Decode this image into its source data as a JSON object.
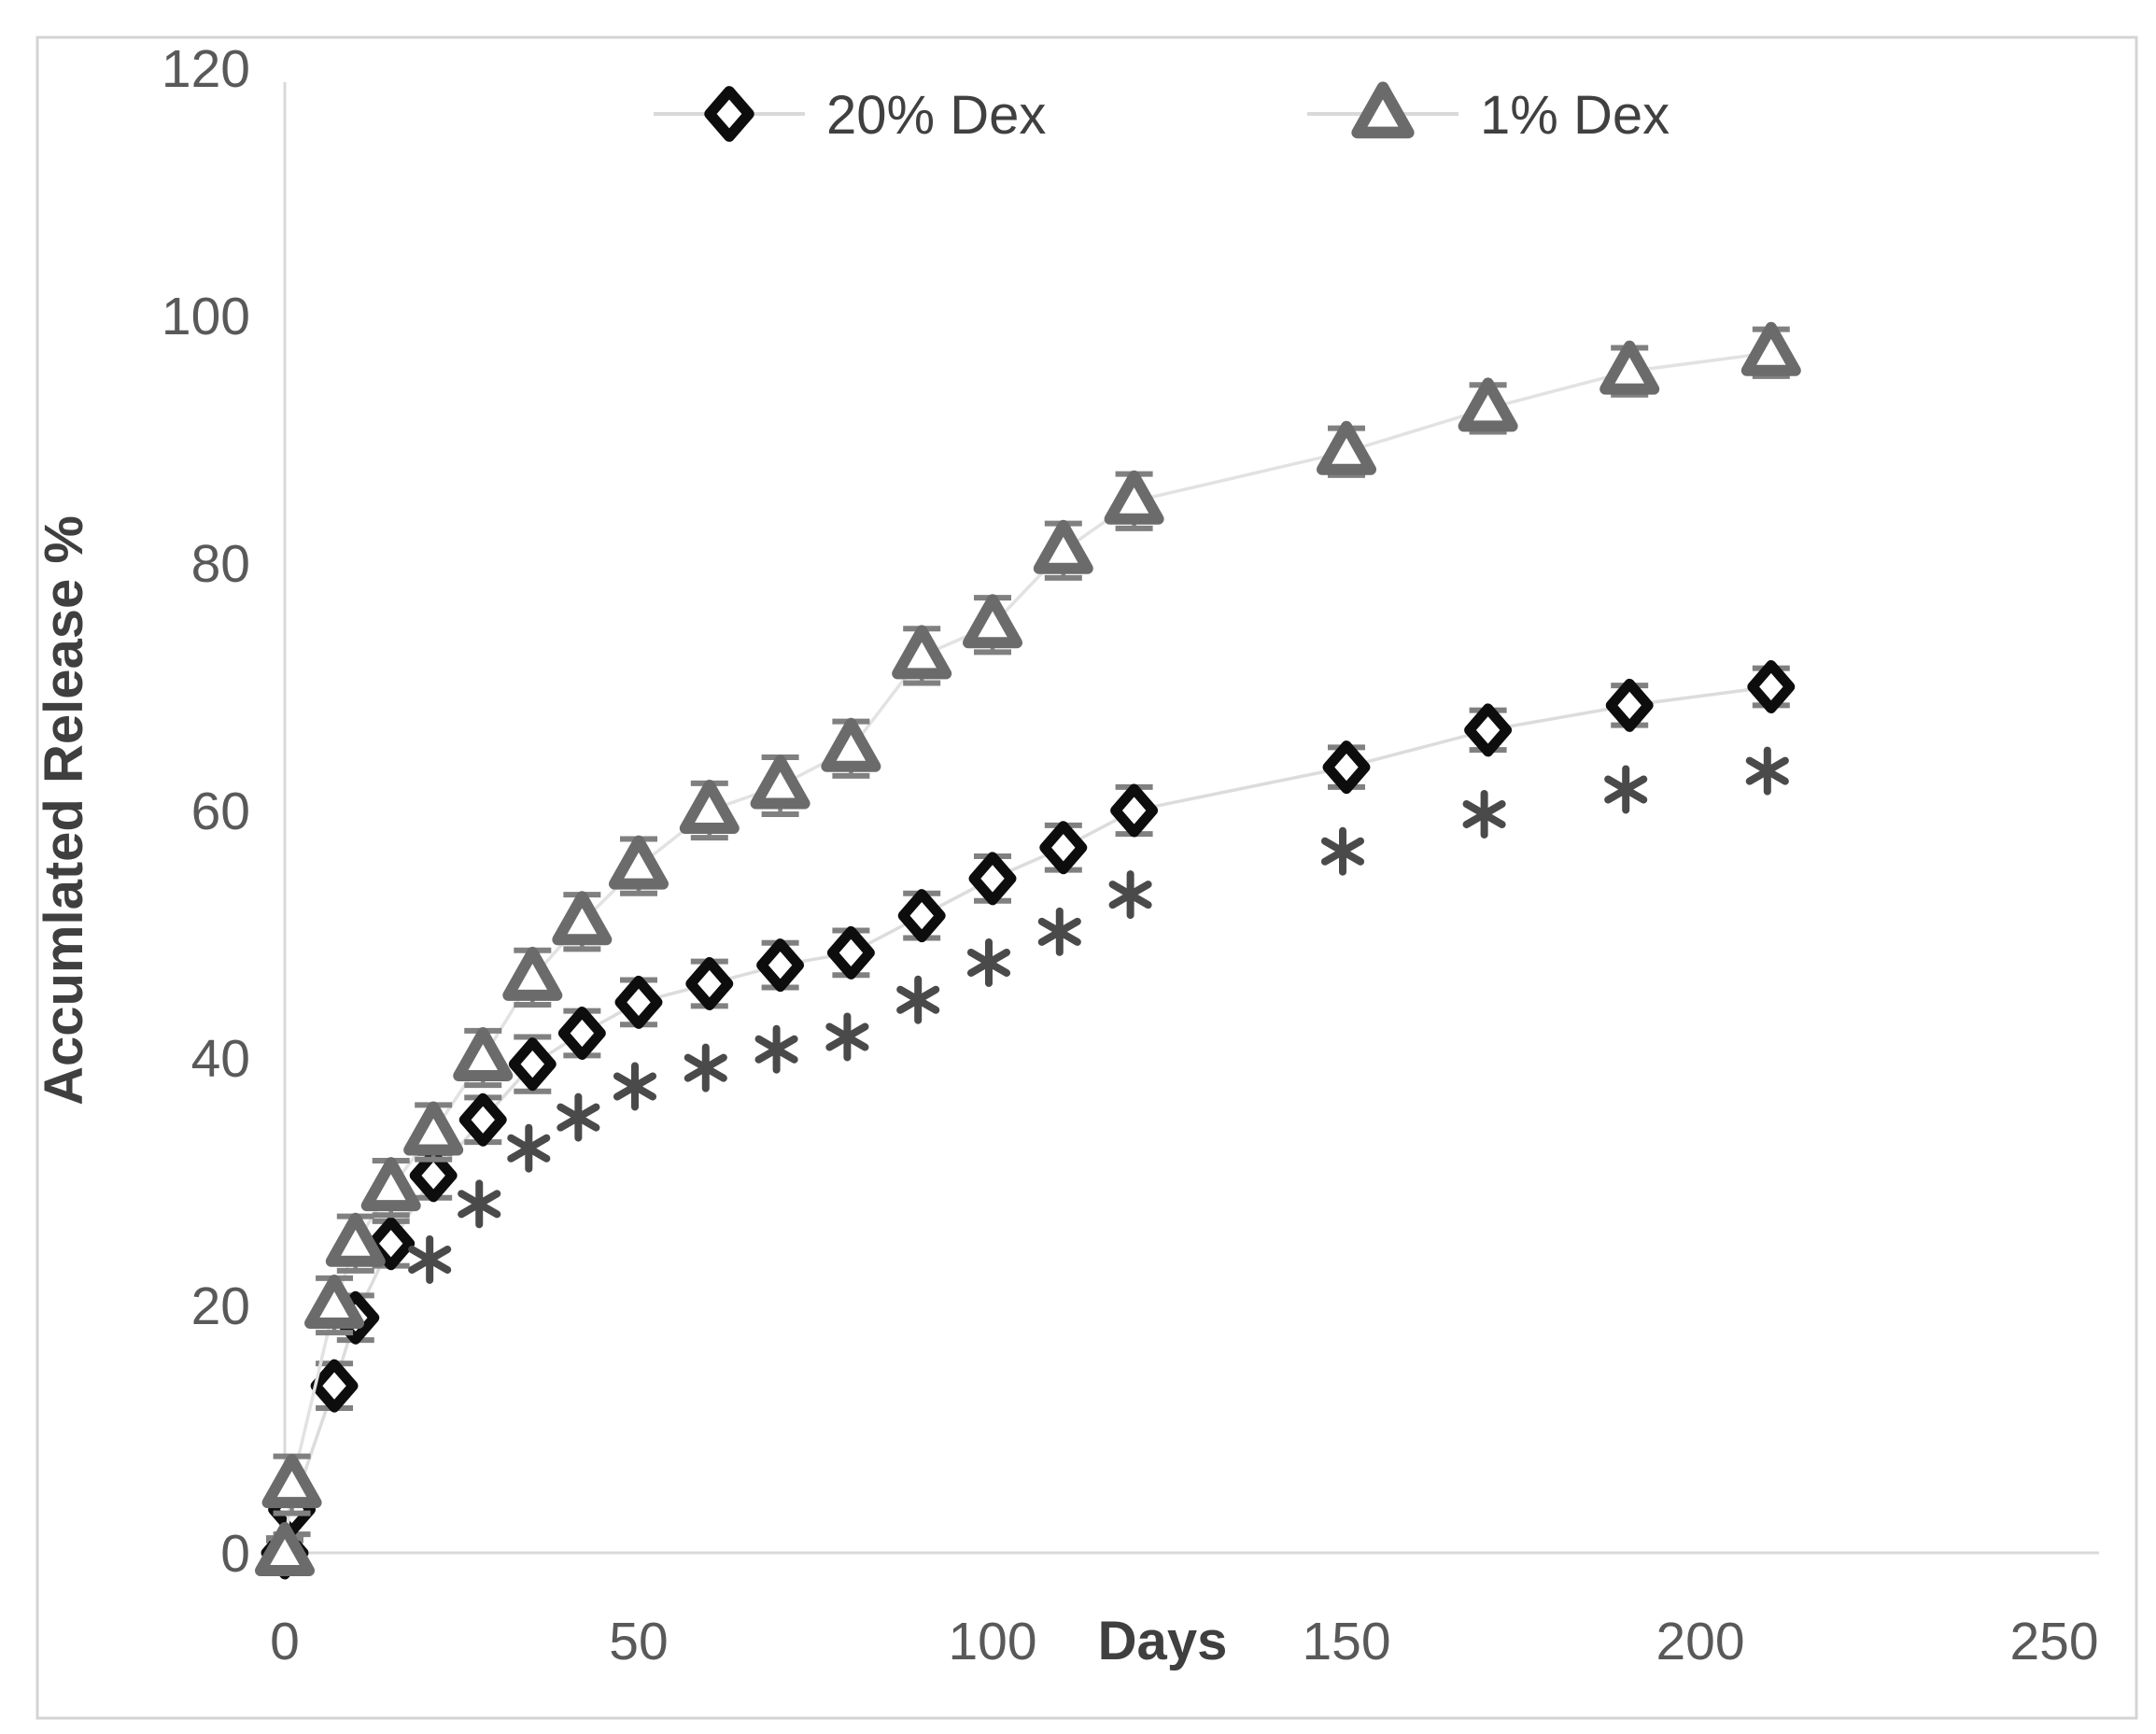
{
  "figure": {
    "border_color": "#d4d4d4",
    "background": "#ffffff"
  },
  "colors": {
    "axis_line": "#d9d9d9",
    "tick_text": "#595959",
    "axis_title_text": "#3f3f3f",
    "series_line": "#dcdcdc",
    "error_bar": "#808080",
    "diamond_marker": "#0d0d0d",
    "triangle_marker": "#6b6b6b",
    "asterisk": "#4a4a4a"
  },
  "chart_data": {
    "type": "line",
    "title": "",
    "xlabel": "Days",
    "ylabel": "Accumlated Release %",
    "xlim": [
      0,
      250
    ],
    "ylim": [
      0,
      120
    ],
    "xticks": [
      0,
      50,
      100,
      150,
      200,
      250
    ],
    "yticks": [
      0,
      20,
      40,
      60,
      80,
      100,
      120
    ],
    "grid": false,
    "legend_position": "top-center",
    "x": [
      0,
      1,
      7,
      10,
      15,
      21,
      28,
      35,
      42,
      50,
      60,
      70,
      80,
      90,
      100,
      110,
      120,
      150,
      170,
      190,
      210
    ],
    "series": [
      {
        "name": "20% Dex",
        "marker": "diamond",
        "marker_color": "#0d0d0d",
        "line_color": "#dcdcdc",
        "values": [
          0,
          3.5,
          13.5,
          19,
          25,
          30.5,
          35,
          39.5,
          42,
          44.5,
          46,
          47.5,
          48.5,
          51.5,
          54.5,
          57,
          60,
          63.5,
          66.5,
          68.5,
          70
        ],
        "errors": [
          1.0,
          2.0,
          1.8,
          1.8,
          1.8,
          1.8,
          1.8,
          2.2,
          1.8,
          1.8,
          1.8,
          1.8,
          1.8,
          1.8,
          1.8,
          1.8,
          1.9,
          1.6,
          1.6,
          1.6,
          1.5
        ]
      },
      {
        "name": "1% Dex",
        "marker": "triangle",
        "marker_color": "#6b6b6b",
        "line_color": "#e2e2e2",
        "values": [
          0,
          5.5,
          20,
          25,
          29.5,
          34,
          40,
          46.5,
          51,
          55.5,
          60,
          62,
          65,
          72.5,
          75,
          81,
          85,
          89,
          92.5,
          95.5,
          97
        ],
        "errors": [
          1.2,
          2.3,
          2.2,
          2.2,
          2.2,
          2.2,
          2.2,
          2.2,
          2.2,
          2.2,
          2.2,
          2.3,
          2.2,
          2.2,
          2.2,
          2.2,
          2.2,
          1.9,
          1.9,
          1.9,
          1.9
        ]
      }
    ],
    "significance": {
      "symbol": "*",
      "applies_to_series": "20% Dex",
      "days": [
        21,
        28,
        35,
        42,
        50,
        60,
        70,
        80,
        90,
        100,
        110,
        120,
        150,
        170,
        190,
        210
      ],
      "value_offset": -6.8
    }
  },
  "legend": {
    "items": [
      {
        "label": "20% Dex",
        "marker": "diamond"
      },
      {
        "label": "1% Dex",
        "marker": "triangle"
      }
    ]
  }
}
